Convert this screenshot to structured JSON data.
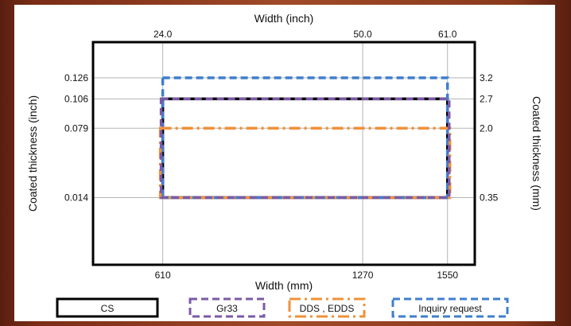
{
  "chart_data": {
    "type": "line",
    "x_top": {
      "label": "Width (inch)",
      "ticks": [
        {
          "label": "24.0",
          "value": 610
        },
        {
          "label": "50.0",
          "value": 1270
        },
        {
          "label": "61.0",
          "value": 1550
        }
      ]
    },
    "x_bottom": {
      "label": "Width (mm)",
      "ticks": [
        {
          "label": "610",
          "value": 610
        },
        {
          "label": "1270",
          "value": 1270
        },
        {
          "label": "1550",
          "value": 1550
        }
      ]
    },
    "y_left": {
      "label": "Coated thickness (inch)",
      "ticks": [
        {
          "label": "0.126",
          "value": 3.2
        },
        {
          "label": "0.106",
          "value": 2.7
        },
        {
          "label": "0.079",
          "value": 2.0
        },
        {
          "label": "0.014",
          "value": 0.35
        }
      ]
    },
    "y_right": {
      "label": "Coated thickness (mm)",
      "ticks": [
        {
          "label": "3.2",
          "value": 3.2
        },
        {
          "label": "2.7",
          "value": 2.7
        },
        {
          "label": "2.0",
          "value": 2.0
        },
        {
          "label": "0.35",
          "value": 0.35
        }
      ]
    },
    "xlim": [
      380,
      1640
    ],
    "ylim": [
      -1.25,
      4.05
    ],
    "grid": true,
    "legend_position": "bottom",
    "series": [
      {
        "name": "CS",
        "color": "#000000",
        "dash": "solid",
        "x_range": [
          610,
          1550
        ],
        "y_range": [
          0.35,
          2.7
        ]
      },
      {
        "name": "Gr33",
        "color": "#7b5aa6",
        "dash": "dash",
        "x_range": [
          610,
          1550
        ],
        "y_range": [
          0.35,
          2.7
        ]
      },
      {
        "name": "DDS , EDDS",
        "color": "#f0913a",
        "dash": "dashdot",
        "x_range": [
          610,
          1550
        ],
        "y_range": [
          0.35,
          2.0
        ]
      },
      {
        "name": "Inquiry request",
        "color": "#3f7fcc",
        "dash": "dash",
        "x_range": [
          610,
          1550
        ],
        "y_range": [
          0.35,
          3.2
        ]
      }
    ]
  }
}
